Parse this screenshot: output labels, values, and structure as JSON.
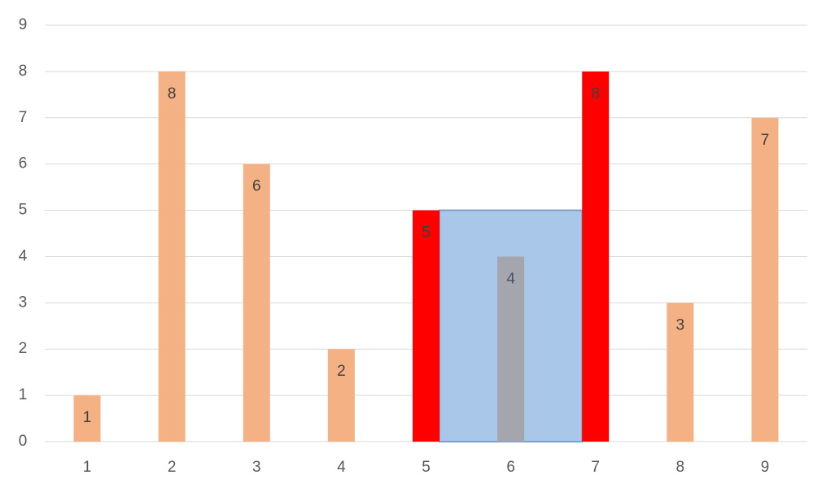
{
  "chart_data": {
    "type": "bar",
    "categories": [
      "1",
      "2",
      "3",
      "4",
      "5",
      "6",
      "7",
      "8",
      "9"
    ],
    "values": [
      1,
      8,
      6,
      2,
      5,
      4,
      8,
      3,
      7
    ],
    "colors": [
      "#f4b183",
      "#f4b183",
      "#f4b183",
      "#f4b183",
      "#ff0000",
      "#a5a5ad",
      "#ff0000",
      "#f4b183",
      "#f4b183"
    ],
    "highlight_color": "#a9c7e8",
    "ylim": [
      0,
      9
    ],
    "yticks": [
      0,
      1,
      2,
      3,
      4,
      5,
      6,
      7,
      8,
      9
    ],
    "grid": true
  }
}
